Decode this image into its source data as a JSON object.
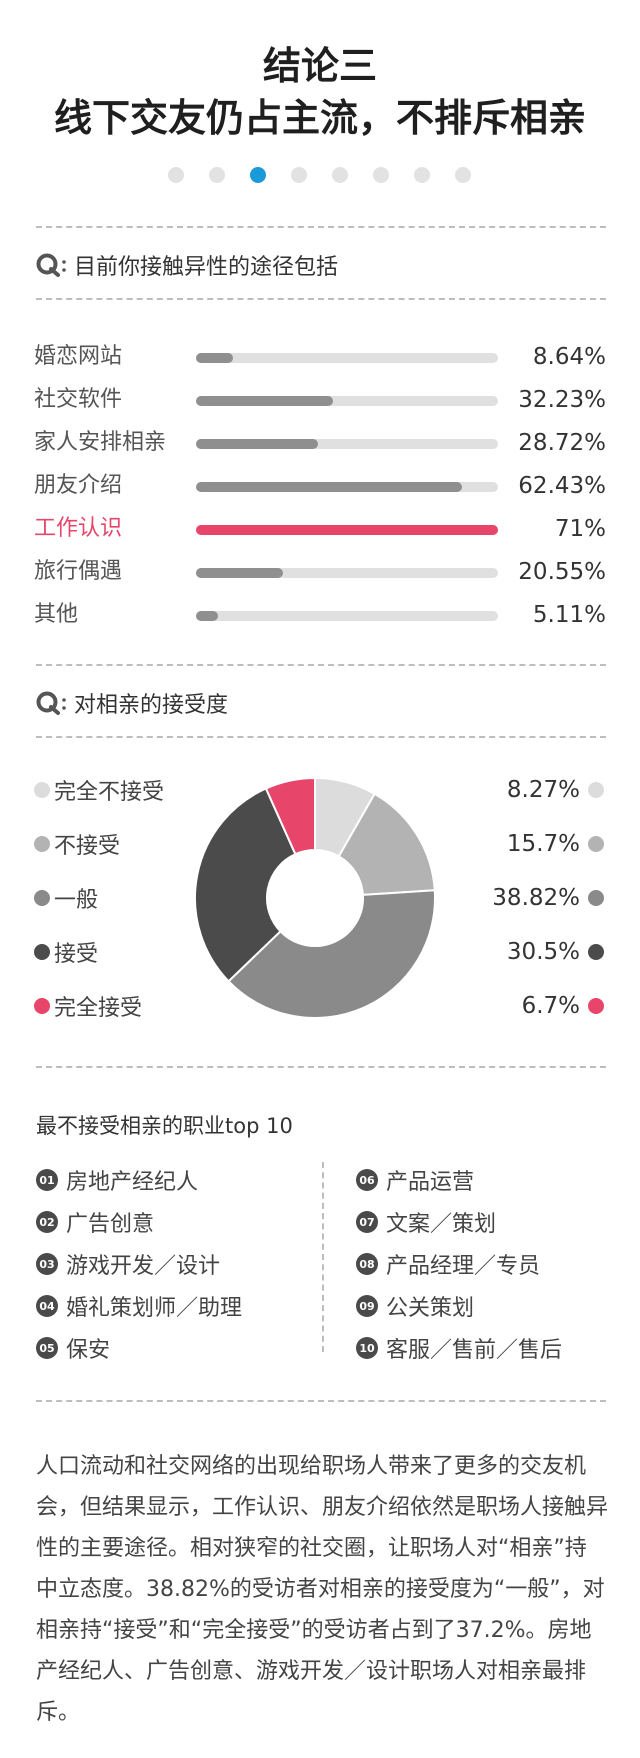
{
  "header": {
    "title_line1": "结论三",
    "title_line2": "线下交友仍占主流，不排斥相亲",
    "dots_total": 8,
    "dots_active_index": 2
  },
  "colors": {
    "accent": "#e8456b",
    "active_dot": "#1a9ad8",
    "bar_gray": "#8f8f8f",
    "track": "#e0e0e0"
  },
  "q1": {
    "icon": "search-q-icon",
    "text": "目前你接触异性的途径包括"
  },
  "q2": {
    "icon": "search-q-icon",
    "text": "对相亲的接受度"
  },
  "chart_data": [
    {
      "type": "bar",
      "categories": [
        "婚恋网站",
        "社交软件",
        "家人安排相亲",
        "朋友介绍",
        "工作认识",
        "旅行偶遇",
        "其他"
      ],
      "values": [
        8.64,
        32.23,
        28.72,
        62.43,
        71,
        20.55,
        5.11
      ],
      "labels": [
        "8.64%",
        "32.23%",
        "28.72%",
        "62.43%",
        "71%",
        "20.55%",
        "5.11%"
      ],
      "highlight_index": 4,
      "xlim": [
        0,
        71
      ]
    },
    {
      "type": "pie",
      "donut": true,
      "categories": [
        "完全不接受",
        "不接受",
        "一般",
        "接受",
        "完全接受"
      ],
      "values": [
        8.27,
        15.7,
        38.82,
        30.5,
        6.7
      ],
      "labels": [
        "8.27%",
        "15.7%",
        "38.82%",
        "30.5%",
        "6.7%"
      ],
      "colors": [
        "#dcdcdc",
        "#b3b3b3",
        "#8a8a8a",
        "#4b4b4b",
        "#e8456b"
      ]
    }
  ],
  "top10": {
    "title": "最不接受相亲的职业top 10",
    "items": [
      {
        "num": "01",
        "label": "房地产经纪人"
      },
      {
        "num": "02",
        "label": "广告创意"
      },
      {
        "num": "03",
        "label": "游戏开发／设计"
      },
      {
        "num": "04",
        "label": "婚礼策划师／助理"
      },
      {
        "num": "05",
        "label": "保安"
      },
      {
        "num": "06",
        "label": "产品运营"
      },
      {
        "num": "07",
        "label": "文案／策划"
      },
      {
        "num": "08",
        "label": "产品经理／专员"
      },
      {
        "num": "09",
        "label": "公关策划"
      },
      {
        "num": "10",
        "label": "客服／售前／售后"
      }
    ]
  },
  "paragraph": {
    "text": "人口流动和社交网络的出现给职场人带来了更多的交友机会，但结果显示，工作认识、朋友介绍依然是职场人接触异性的主要途径。相对狭窄的社交圈，让职场人对“相亲”持中立态度。38.82%的受访者对相亲的接受度为“一般”，对相亲持“接受”和“完全接受”的受访者占到了37.2%。房地产经纪人、广告创意、游戏开发／设计职场人对相亲最排斥。"
  }
}
